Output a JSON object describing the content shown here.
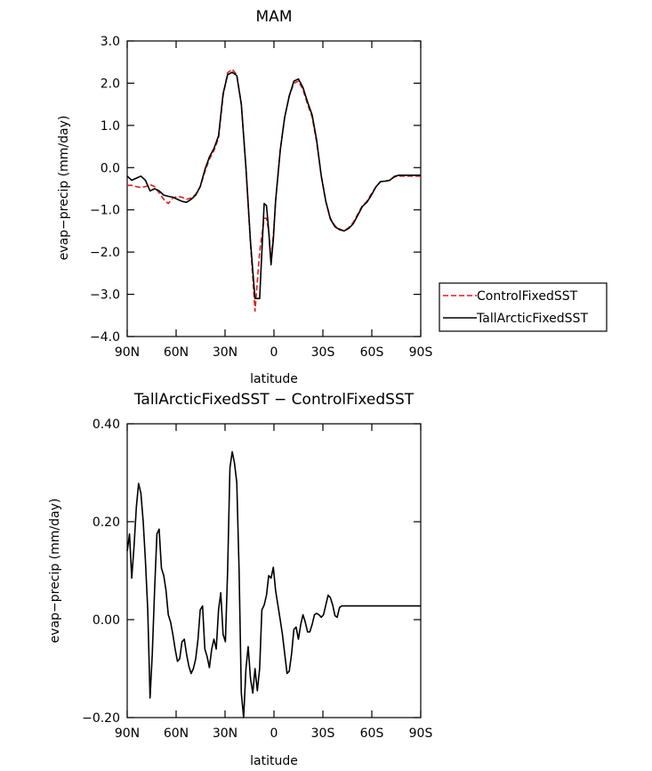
{
  "chart_data": [
    {
      "type": "line",
      "title": "MAM",
      "xlabel": "latitude",
      "ylabel": "evap−precip (mm/day)",
      "xlim": [
        90,
        -90
      ],
      "ylim": [
        -4.0,
        3.0
      ],
      "x_ticks": [
        90,
        60,
        30,
        0,
        -30,
        -60,
        -90
      ],
      "x_tick_labels": [
        "90N",
        "60N",
        "30N",
        "0",
        "30S",
        "60S",
        "90S"
      ],
      "y_ticks": [
        3.0,
        2.0,
        1.0,
        0.0,
        -1.0,
        -2.0,
        -3.0,
        -4.0
      ],
      "y_tick_labels": [
        "3.0",
        "2.0",
        "1.0",
        "0.0",
        "−1.0",
        "−2.0",
        "−3.0",
        "−4.0"
      ],
      "legend_position": "right",
      "series": [
        {
          "name": "ControlFixedSST",
          "color": "#e8191c",
          "dash": "dashed",
          "x": [
            90,
            87.2,
            84.4,
            81.6,
            78.8,
            76,
            73.2,
            70.4,
            67.6,
            64.8,
            62,
            59.2,
            56.4,
            53.6,
            50.8,
            48,
            45.2,
            42.4,
            39.6,
            36.8,
            34,
            31.2,
            28.4,
            25.6,
            22.8,
            20,
            17.2,
            14.4,
            11.6,
            8.8,
            6,
            4.6,
            3.2,
            1.8,
            0.4,
            -1,
            -2.4,
            -3.8,
            -5.2,
            -6.6,
            -9.4,
            -12.2,
            -15,
            -17.8,
            -20.6,
            -23.4,
            -26.2,
            -29,
            -31.8,
            -34.6,
            -37.4,
            -40.2,
            -43,
            -45.8,
            -48.6,
            -51.4,
            -54.2,
            -57,
            -59.8,
            -62.6,
            -65.4,
            -68.2,
            -71,
            -73.8,
            -76.6,
            -79.4,
            -82.2,
            -85,
            -87.8,
            -90
          ],
          "y": [
            -0.42,
            -0.42,
            -0.45,
            -0.47,
            -0.45,
            -0.4,
            -0.45,
            -0.6,
            -0.75,
            -0.85,
            -0.72,
            -0.68,
            -0.7,
            -0.75,
            -0.72,
            -0.63,
            -0.45,
            -0.1,
            0.2,
            0.4,
            0.7,
            1.7,
            2.25,
            2.33,
            2.2,
            1.5,
            0.0,
            -1.8,
            -3.4,
            -2.0,
            -1.2,
            -1.2,
            -1.5,
            -2.2,
            -1.6,
            -0.8,
            -0.2,
            0.4,
            0.8,
            1.2,
            1.7,
            2.0,
            2.05,
            1.85,
            1.5,
            1.2,
            0.6,
            -0.2,
            -0.8,
            -1.2,
            -1.38,
            -1.45,
            -1.5,
            -1.42,
            -1.3,
            -1.1,
            -0.9,
            -0.8,
            -0.62,
            -0.45,
            -0.33,
            -0.32,
            -0.3,
            -0.22,
            -0.2,
            -0.2,
            -0.2,
            -0.2,
            -0.2,
            -0.2
          ]
        },
        {
          "name": "TallArcticFixedSST",
          "color": "#000000",
          "dash": "solid",
          "x": [
            90,
            87.2,
            84.4,
            81.6,
            78.8,
            76,
            73.2,
            70.4,
            67.6,
            64.8,
            62,
            59.2,
            56.4,
            53.6,
            50.8,
            48,
            45.2,
            42.4,
            39.6,
            36.8,
            34,
            31.2,
            28.4,
            25.6,
            22.8,
            20,
            17.2,
            14.4,
            11.6,
            8.8,
            6,
            4.6,
            3.2,
            1.8,
            0.4,
            -1,
            -2.4,
            -3.8,
            -5.2,
            -6.6,
            -9.4,
            -12.2,
            -15,
            -17.8,
            -20.6,
            -23.4,
            -26.2,
            -29,
            -31.8,
            -34.6,
            -37.4,
            -40.2,
            -43,
            -45.8,
            -48.6,
            -51.4,
            -54.2,
            -57,
            -59.8,
            -62.6,
            -65.4,
            -68.2,
            -71,
            -73.8,
            -76.6,
            -79.4,
            -82.2,
            -85,
            -87.8,
            -90
          ],
          "y": [
            -0.2,
            -0.3,
            -0.25,
            -0.2,
            -0.3,
            -0.55,
            -0.5,
            -0.55,
            -0.65,
            -0.68,
            -0.7,
            -0.75,
            -0.8,
            -0.82,
            -0.75,
            -0.65,
            -0.45,
            -0.05,
            0.25,
            0.45,
            0.75,
            1.75,
            2.2,
            2.26,
            2.18,
            1.5,
            0.0,
            -1.75,
            -3.1,
            -3.1,
            -0.85,
            -0.9,
            -1.5,
            -2.3,
            -1.7,
            -0.8,
            -0.2,
            0.4,
            0.8,
            1.2,
            1.7,
            2.05,
            2.1,
            1.9,
            1.55,
            1.25,
            0.65,
            -0.2,
            -0.8,
            -1.22,
            -1.4,
            -1.47,
            -1.5,
            -1.44,
            -1.33,
            -1.13,
            -0.92,
            -0.82,
            -0.65,
            -0.45,
            -0.33,
            -0.32,
            -0.3,
            -0.21,
            -0.18,
            -0.18,
            -0.18,
            -0.18,
            -0.18,
            -0.18
          ]
        }
      ]
    },
    {
      "type": "line",
      "title": "TallArcticFixedSST − ControlFixedSST",
      "xlabel": "latitude",
      "ylabel": "evap−precip (mm/day)",
      "xlim": [
        90,
        -90
      ],
      "ylim": [
        -0.2,
        0.4
      ],
      "x_ticks": [
        90,
        60,
        30,
        0,
        -30,
        -60,
        -90
      ],
      "x_tick_labels": [
        "90N",
        "60N",
        "30N",
        "0",
        "30S",
        "60S",
        "90S"
      ],
      "y_ticks": [
        0.4,
        0.2,
        0.0,
        -0.2
      ],
      "y_tick_labels": [
        "0.40",
        "0.20",
        "0.00",
        "−0.20"
      ],
      "series": [
        {
          "color": "#000000",
          "x": [
            90,
            88.6,
            87.2,
            85.8,
            84.4,
            83,
            81.6,
            80.2,
            78.8,
            77.4,
            76,
            74.6,
            73.2,
            71.8,
            70.4,
            69,
            67.6,
            66.2,
            64.8,
            63.4,
            62,
            60.6,
            59.2,
            57.8,
            56.4,
            55,
            53.6,
            52.2,
            50.8,
            49.4,
            48,
            46.6,
            45.2,
            43.8,
            42.4,
            41,
            39.6,
            38.2,
            36.8,
            35.4,
            34,
            32.6,
            31.2,
            29.8,
            28.4,
            27,
            25.6,
            24.2,
            22.8,
            21.4,
            20,
            18.6,
            17.2,
            15.8,
            14.4,
            13,
            11.6,
            10.2,
            8.8,
            7.4,
            6,
            4.6,
            3.2,
            1.8,
            0.4,
            -1,
            -2.4,
            -3.8,
            -5.2,
            -6.6,
            -8,
            -9.4,
            -10.8,
            -12.2,
            -13.6,
            -15,
            -16.4,
            -17.8,
            -19.2,
            -20.6,
            -22,
            -23.4,
            -24.8,
            -26.2,
            -27.6,
            -29,
            -30.4,
            -31.8,
            -33.2,
            -34.6,
            -36,
            -37.4,
            -38.8,
            -40.2,
            -41.6,
            -43,
            -44.4,
            -45.8,
            -47.2,
            -48.6,
            -50,
            -51.4,
            -52.8,
            -54.2,
            -55.6,
            -57,
            -58.4,
            -59.8,
            -61.2,
            -62.6,
            -64,
            -65.4,
            -66.8,
            -68.2,
            -69.6,
            -71,
            -72.4,
            -73.8,
            -75.2,
            -76.6,
            -78,
            -79.4,
            -80.8,
            -82.2,
            -83.6,
            -85,
            -86.4,
            -87.8,
            -89.2,
            -90
          ],
          "y": [
            0.14,
            0.175,
            0.085,
            0.15,
            0.23,
            0.278,
            0.258,
            0.2,
            0.12,
            0.02,
            -0.16,
            -0.07,
            0.06,
            0.175,
            0.185,
            0.105,
            0.09,
            0.06,
            0.01,
            -0.005,
            -0.03,
            -0.06,
            -0.085,
            -0.08,
            -0.045,
            -0.04,
            -0.07,
            -0.095,
            -0.11,
            -0.1,
            -0.08,
            -0.04,
            0.02,
            0.028,
            -0.06,
            -0.075,
            -0.098,
            -0.06,
            -0.04,
            -0.06,
            0.02,
            0.055,
            -0.03,
            -0.045,
            0.1,
            0.31,
            0.343,
            0.32,
            0.28,
            0.1,
            -0.15,
            -0.2,
            -0.1,
            -0.055,
            -0.12,
            -0.15,
            -0.1,
            -0.145,
            -0.1,
            0.02,
            0.03,
            0.05,
            0.09,
            0.085,
            0.107,
            0.06,
            0.03,
            0.0,
            -0.03,
            -0.07,
            -0.11,
            -0.105,
            -0.07,
            -0.02,
            -0.015,
            -0.04,
            -0.01,
            0.01,
            -0.005,
            -0.025,
            -0.025,
            -0.01,
            0.01,
            0.013,
            0.01,
            0.005,
            0.01,
            0.03,
            0.05,
            0.045,
            0.03,
            0.008,
            0.005,
            0.025,
            0.028,
            0.028,
            0.028,
            0.028,
            0.028,
            0.028,
            0.028,
            0.028,
            0.028,
            0.028,
            0.028,
            0.028,
            0.028,
            0.028,
            0.028,
            0.028,
            0.028,
            0.028,
            0.028,
            0.028,
            0.028,
            0.028,
            0.028,
            0.028,
            0.028,
            0.028,
            0.028,
            0.028,
            0.028,
            0.028,
            0.028,
            0.028,
            0.028,
            0.028,
            0.028,
            0.028
          ]
        }
      ]
    }
  ]
}
